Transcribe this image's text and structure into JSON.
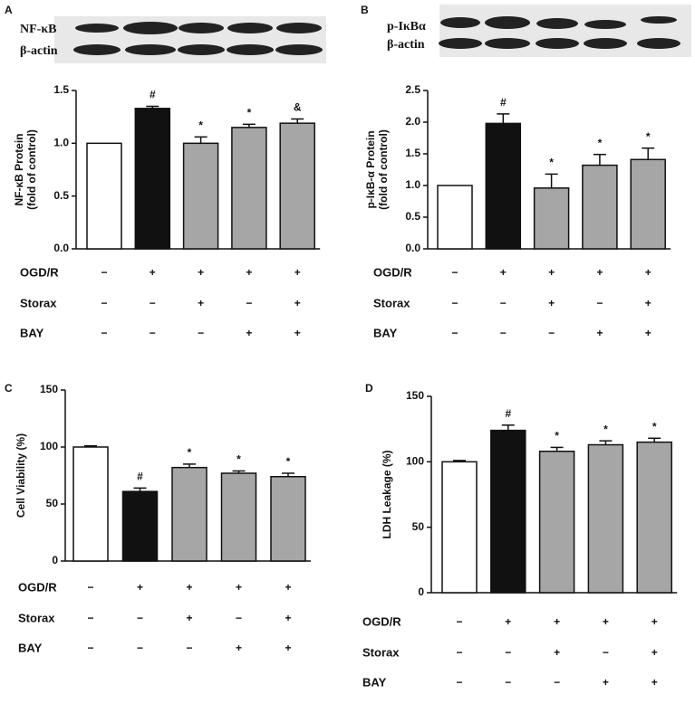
{
  "chart_data": [
    {
      "type": "bar",
      "panel": "A",
      "blot_labels": [
        "NF-κB",
        "β-actin"
      ],
      "ylabel": [
        "NF-κB Protein",
        "(fold of control)"
      ],
      "categories": [
        null,
        null,
        null,
        null,
        null
      ],
      "values": [
        1.0,
        1.33,
        1.0,
        1.15,
        1.19
      ],
      "errors": [
        0,
        0.02,
        0.06,
        0.03,
        0.04
      ],
      "annotations": [
        null,
        "#",
        "*",
        "*",
        "&"
      ],
      "colors": [
        "#ffffff",
        "#111111",
        "#a6a6a6",
        "#a6a6a6",
        "#a6a6a6"
      ],
      "ylim": [
        0,
        1.5
      ],
      "yticks": [
        {
          "value": 0,
          "label": "0.0"
        },
        0.5,
        {
          "value": 1,
          "label": "1.0"
        },
        1.5
      ],
      "treatments": [
        {
          "name": "OGD/R",
          "signs": [
            "−",
            "+",
            "+",
            "+",
            "+"
          ]
        },
        {
          "name": "Storax",
          "signs": [
            "−",
            "−",
            "+",
            "−",
            "+"
          ]
        },
        {
          "name": "BAY",
          "signs": [
            "−",
            "−",
            "−",
            "+",
            "+"
          ]
        }
      ]
    },
    {
      "type": "bar",
      "panel": "B",
      "blot_labels": [
        "p-IκBα",
        "β-actin"
      ],
      "ylabel": [
        "p-IκB-α Protein",
        "(fold of control)"
      ],
      "categories": [
        null,
        null,
        null,
        null,
        null
      ],
      "values": [
        1.0,
        1.98,
        0.96,
        1.32,
        1.41
      ],
      "errors": [
        0,
        0.15,
        0.22,
        0.17,
        0.18
      ],
      "annotations": [
        null,
        "#",
        "*",
        "*",
        "*"
      ],
      "colors": [
        "#ffffff",
        "#111111",
        "#a6a6a6",
        "#a6a6a6",
        "#a6a6a6"
      ],
      "ylim": [
        0,
        2.5
      ],
      "yticks": [
        {
          "value": 0,
          "label": "0.0"
        },
        0.5,
        {
          "value": 1,
          "label": "1.0"
        },
        1.5,
        {
          "value": 2,
          "label": "2.0"
        },
        2.5
      ],
      "treatments": [
        {
          "name": "OGD/R",
          "signs": [
            "−",
            "+",
            "+",
            "+",
            "+"
          ]
        },
        {
          "name": "Storax",
          "signs": [
            "−",
            "−",
            "+",
            "−",
            "+"
          ]
        },
        {
          "name": "BAY",
          "signs": [
            "−",
            "−",
            "−",
            "+",
            "+"
          ]
        }
      ]
    },
    {
      "type": "bar",
      "panel": "C",
      "ylabel": [
        "Cell Viability (%)"
      ],
      "categories": [
        null,
        null,
        null,
        null,
        null
      ],
      "values": [
        100,
        61,
        82,
        77,
        74
      ],
      "errors": [
        1,
        3,
        3,
        2,
        3
      ],
      "annotations": [
        null,
        "#",
        "*",
        "*",
        "*"
      ],
      "colors": [
        "#ffffff",
        "#111111",
        "#a6a6a6",
        "#a6a6a6",
        "#a6a6a6"
      ],
      "ylim": [
        0,
        150
      ],
      "yticks": [
        0,
        50,
        100,
        150
      ],
      "treatments": [
        {
          "name": "OGD/R",
          "signs": [
            "−",
            "+",
            "+",
            "+",
            "+"
          ]
        },
        {
          "name": "Storax",
          "signs": [
            "−",
            "−",
            "+",
            "−",
            "+"
          ]
        },
        {
          "name": "BAY",
          "signs": [
            "−",
            "−",
            "−",
            "+",
            "+"
          ]
        }
      ]
    },
    {
      "type": "bar",
      "panel": "D",
      "ylabel": [
        "LDH Leakage (%)"
      ],
      "categories": [
        null,
        null,
        null,
        null,
        null
      ],
      "values": [
        100,
        124,
        108,
        113,
        115
      ],
      "errors": [
        1,
        4,
        3,
        3,
        3
      ],
      "annotations": [
        null,
        "#",
        "*",
        "*",
        "*"
      ],
      "colors": [
        "#ffffff",
        "#111111",
        "#a6a6a6",
        "#a6a6a6",
        "#a6a6a6"
      ],
      "ylim": [
        0,
        150
      ],
      "yticks": [
        0,
        50,
        100,
        150
      ],
      "treatments": [
        {
          "name": "OGD/R",
          "signs": [
            "−",
            "+",
            "+",
            "+",
            "+"
          ]
        },
        {
          "name": "Storax",
          "signs": [
            "−",
            "−",
            "+",
            "−",
            "+"
          ]
        },
        {
          "name": "BAY",
          "signs": [
            "−",
            "−",
            "−",
            "+",
            "+"
          ]
        }
      ]
    }
  ]
}
